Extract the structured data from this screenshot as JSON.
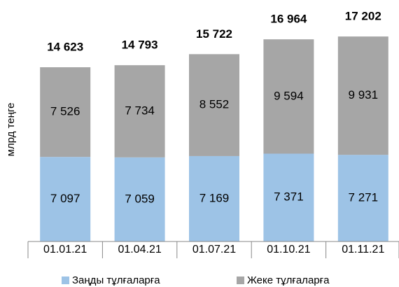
{
  "chart_data": {
    "type": "stacked_bar",
    "y_axis_label": "млрд теңге",
    "categories": [
      "01.01.21",
      "01.04.21",
      "01.07.21",
      "01.10.21",
      "01.11.21"
    ],
    "series": [
      {
        "name": "Заңды тұлғаларға",
        "color": "#9dc3e6",
        "values": [
          7097,
          7059,
          7169,
          7371,
          7271
        ],
        "value_labels": [
          "7 097",
          "7 059",
          "7 169",
          "7 371",
          "7 271"
        ]
      },
      {
        "name": "Жеке тұлғаларға",
        "color": "#a6a6a6",
        "values": [
          7526,
          7734,
          8552,
          9594,
          9931
        ],
        "value_labels": [
          "7 526",
          "7 734",
          "8 552",
          "9 594",
          "9 931"
        ]
      }
    ],
    "totals": [
      14623,
      14793,
      15722,
      16964,
      17202
    ],
    "totals_labels": [
      "14 623",
      "14 793",
      "15 722",
      "16 964",
      "17 202"
    ],
    "ylim": [
      0,
      20000
    ],
    "legend": "bottom"
  }
}
